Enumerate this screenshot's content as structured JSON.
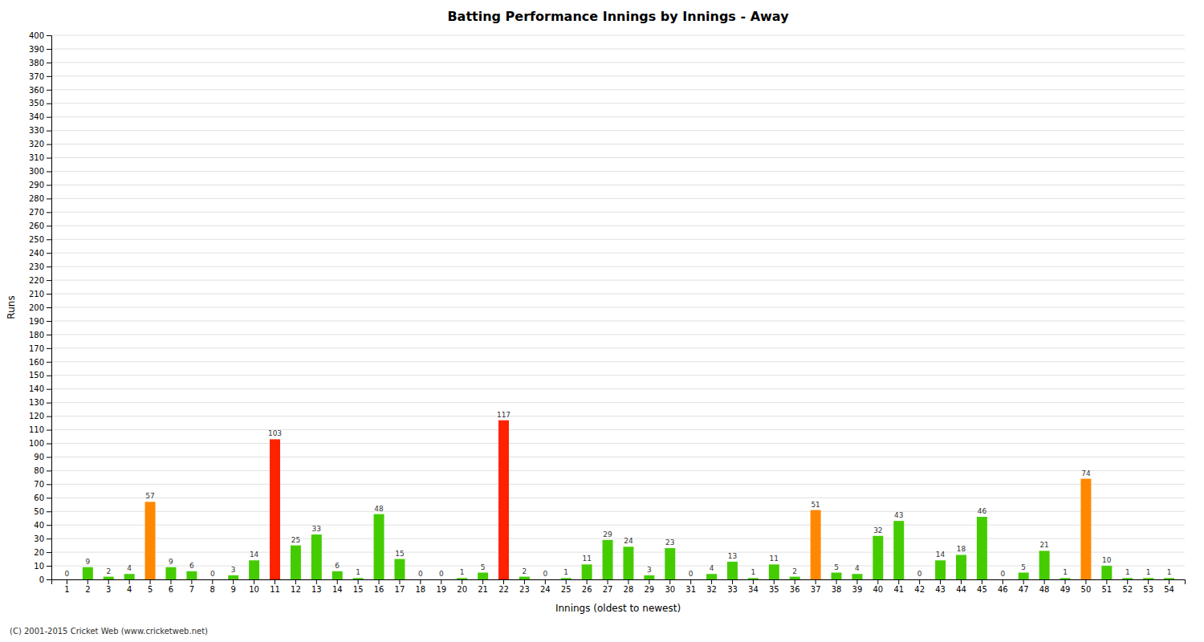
{
  "chart_data": {
    "type": "bar",
    "title": "Batting Performance Innings by Innings - Away",
    "x_label": "Innings (oldest to newest)",
    "y_label": "Runs",
    "categories": [
      "1",
      "2",
      "3",
      "4",
      "5",
      "6",
      "7",
      "8",
      "9",
      "10",
      "11",
      "12",
      "13",
      "14",
      "15",
      "16",
      "17",
      "18",
      "19",
      "20",
      "21",
      "22",
      "23",
      "24",
      "25",
      "26",
      "27",
      "28",
      "29",
      "30",
      "31",
      "32",
      "33",
      "34",
      "35",
      "36",
      "37",
      "38",
      "39",
      "40",
      "41",
      "42",
      "43",
      "44",
      "45",
      "46",
      "47",
      "48",
      "49",
      "50",
      "51",
      "52",
      "53",
      "54"
    ],
    "values": [
      0,
      9,
      2,
      4,
      57,
      9,
      6,
      0,
      3,
      14,
      103,
      25,
      33,
      6,
      1,
      48,
      15,
      0,
      0,
      1,
      5,
      117,
      2,
      0,
      1,
      11,
      29,
      24,
      3,
      23,
      0,
      4,
      13,
      1,
      11,
      2,
      51,
      5,
      4,
      32,
      43,
      0,
      14,
      18,
      46,
      0,
      5,
      21,
      1,
      74,
      10,
      1,
      1,
      1
    ],
    "colors": [
      "#44cc00",
      "#44cc00",
      "#44cc00",
      "#44cc00",
      "#ff8800",
      "#44cc00",
      "#44cc00",
      "#44cc00",
      "#44cc00",
      "#44cc00",
      "#ff2200",
      "#44cc00",
      "#44cc00",
      "#44cc00",
      "#44cc00",
      "#44cc00",
      "#44cc00",
      "#44cc00",
      "#44cc00",
      "#44cc00",
      "#44cc00",
      "#ff2200",
      "#44cc00",
      "#44cc00",
      "#44cc00",
      "#44cc00",
      "#44cc00",
      "#44cc00",
      "#44cc00",
      "#44cc00",
      "#44cc00",
      "#44cc00",
      "#44cc00",
      "#44cc00",
      "#44cc00",
      "#44cc00",
      "#ff8800",
      "#44cc00",
      "#44cc00",
      "#44cc00",
      "#44cc00",
      "#44cc00",
      "#44cc00",
      "#44cc00",
      "#44cc00",
      "#44cc00",
      "#44cc00",
      "#44cc00",
      "#44cc00",
      "#ff8800",
      "#44cc00",
      "#44cc00",
      "#44cc00",
      "#44cc00"
    ],
    "ylim": [
      0,
      400
    ],
    "yticks": [
      0,
      10,
      20,
      30,
      40,
      50,
      60,
      70,
      80,
      90,
      100,
      110,
      120,
      130,
      140,
      150,
      160,
      170,
      180,
      190,
      200,
      210,
      220,
      230,
      240,
      250,
      260,
      270,
      280,
      290,
      300,
      310,
      320,
      330,
      340,
      350,
      360,
      370,
      380,
      390,
      400
    ],
    "grid": true,
    "data_labels": true,
    "annotations": [
      "(C) 2001-2015 Cricket Web (www.cricketweb.net)"
    ]
  }
}
